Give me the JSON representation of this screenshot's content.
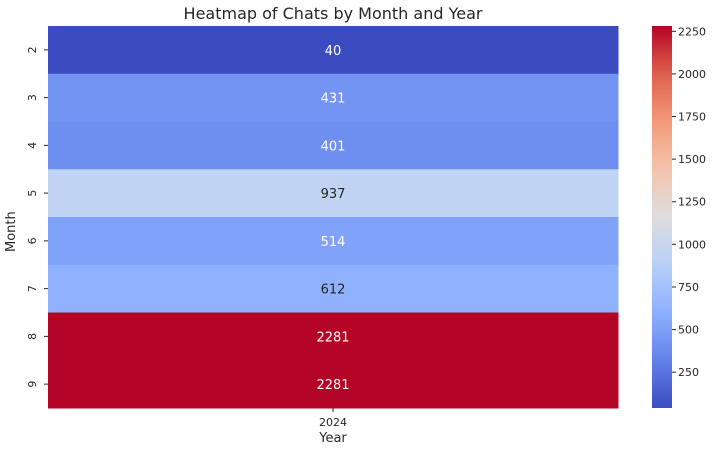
{
  "chart_data": {
    "type": "heatmap",
    "title": "Heatmap of Chats by Month and Year",
    "xlabel": "Year",
    "ylabel": "Month",
    "x_categories": [
      "2024"
    ],
    "y_categories": [
      "2",
      "3",
      "4",
      "5",
      "6",
      "7",
      "8",
      "9"
    ],
    "values": [
      [
        40
      ],
      [
        431
      ],
      [
        401
      ],
      [
        937
      ],
      [
        514
      ],
      [
        612
      ],
      [
        2281
      ],
      [
        2281
      ]
    ],
    "colormap": "coolwarm",
    "color_range": [
      40,
      2281
    ],
    "colorbar_ticks": [
      250,
      500,
      750,
      1000,
      1250,
      1500,
      1750,
      2000,
      2250
    ],
    "annotations": true
  }
}
